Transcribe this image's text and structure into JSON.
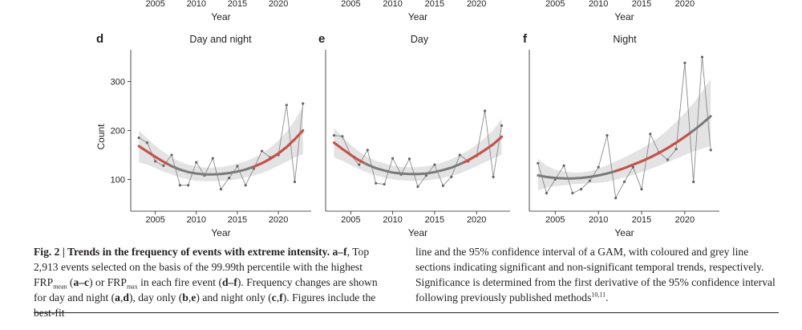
{
  "figure": {
    "label": "Fig. 2 | Trends in the frequency of events with extreme intensity.",
    "caption_col1_html": "<b>Fig. 2 | Trends in the frequency of events with extreme intensity. a–f</b>, Top 2,913 events selected on the basis of the 99.99th percentile with the highest FRP<sub>mean</sub> (<b>a–c</b>) or FRP<sub>max</sub> in each fire event (<b>d–f</b>). Frequency changes are shown for day and night (<b>a</b>,<b>d</b>), day only (<b>b</b>,<b>e</b>) and night only (<b>c</b>,<b>f</b>). Figures include the best-fit",
    "caption_col2_html": "line and the 95% confidence interval of a GAM, with coloured and grey line sections indicating significant and non-significant temporal trends, respectively. Significance is determined from the first derivative of the 95% confidence interval following previously published methods<sup>10,11</sup>."
  },
  "top_row_partial": {
    "panels": [
      {
        "ticks": [
          "2005",
          "2010",
          "2015",
          "2020"
        ],
        "xlabel": "Year"
      },
      {
        "ticks": [
          "2005",
          "2010",
          "2015",
          "2020"
        ],
        "xlabel": "Year"
      },
      {
        "ticks": [
          "2005",
          "2010",
          "2015",
          "2020"
        ],
        "xlabel": "Year"
      }
    ]
  },
  "colors": {
    "significant": "#c8504a",
    "nonsignificant": "#7a7a7a",
    "ci_band": "#e3e3e3",
    "observed": "#8a8a8a"
  },
  "chart_data": [
    {
      "type": "line",
      "panel": "d",
      "title": "Day and night",
      "xlabel": "Year",
      "ylabel": "Count",
      "xlim": [
        2002,
        2024
      ],
      "ylim": [
        35,
        365
      ],
      "yticks": [
        100,
        200,
        300
      ],
      "xticks": [
        2005,
        2010,
        2015,
        2020
      ],
      "x": [
        2003,
        2004,
        2005,
        2006,
        2007,
        2008,
        2009,
        2010,
        2011,
        2012,
        2013,
        2014,
        2015,
        2016,
        2017,
        2018,
        2019,
        2020,
        2021,
        2022,
        2023
      ],
      "observed": [
        185,
        175,
        137,
        128,
        150,
        88,
        88,
        135,
        108,
        143,
        80,
        103,
        127,
        88,
        122,
        158,
        145,
        150,
        252,
        95,
        255
      ],
      "fit": [
        168,
        157,
        146,
        136,
        127,
        120,
        115,
        112,
        110,
        110,
        111,
        113,
        116,
        120,
        126,
        133,
        142,
        153,
        166,
        182,
        200
      ],
      "ci_lower": [
        135,
        130,
        123,
        116,
        110,
        104,
        100,
        97,
        96,
        96,
        97,
        98,
        100,
        104,
        108,
        113,
        120,
        128,
        136,
        145,
        152
      ],
      "ci_upper": [
        200,
        184,
        169,
        156,
        145,
        136,
        130,
        127,
        124,
        124,
        125,
        128,
        132,
        137,
        144,
        153,
        165,
        179,
        197,
        220,
        250
      ],
      "significant_segments": [
        [
          2003,
          2006.5
        ],
        [
          2017,
          2023
        ]
      ]
    },
    {
      "type": "line",
      "panel": "e",
      "title": "Day",
      "xlabel": "Year",
      "ylabel": "",
      "xlim": [
        2002,
        2024
      ],
      "ylim": [
        35,
        365
      ],
      "xticks": [
        2005,
        2010,
        2015,
        2020
      ],
      "x": [
        2003,
        2004,
        2005,
        2006,
        2007,
        2008,
        2009,
        2010,
        2011,
        2012,
        2013,
        2014,
        2015,
        2016,
        2017,
        2018,
        2019,
        2020,
        2021,
        2022,
        2023
      ],
      "observed": [
        190,
        188,
        150,
        130,
        160,
        92,
        90,
        143,
        110,
        142,
        85,
        108,
        130,
        87,
        105,
        150,
        137,
        148,
        240,
        105,
        210
      ],
      "fit": [
        175,
        162,
        150,
        139,
        130,
        123,
        118,
        114,
        112,
        111,
        111,
        112,
        115,
        119,
        124,
        131,
        139,
        149,
        160,
        172,
        187
      ],
      "ci_lower": [
        145,
        138,
        129,
        121,
        114,
        108,
        103,
        100,
        98,
        97,
        97,
        98,
        100,
        103,
        107,
        112,
        119,
        127,
        135,
        143,
        150
      ],
      "ci_upper": [
        205,
        187,
        171,
        157,
        146,
        138,
        133,
        128,
        126,
        125,
        125,
        127,
        130,
        135,
        141,
        150,
        159,
        171,
        185,
        201,
        224
      ],
      "significant_segments": [
        [
          2003,
          2006.5
        ],
        [
          2018.5,
          2023
        ]
      ]
    },
    {
      "type": "line",
      "panel": "f",
      "title": "Night",
      "xlabel": "Year",
      "ylabel": "",
      "xlim": [
        2002,
        2024
      ],
      "ylim": [
        35,
        365
      ],
      "xticks": [
        2005,
        2010,
        2015,
        2020
      ],
      "x": [
        2003,
        2004,
        2005,
        2006,
        2007,
        2008,
        2009,
        2010,
        2011,
        2012,
        2013,
        2014,
        2015,
        2016,
        2017,
        2018,
        2019,
        2020,
        2021,
        2022,
        2023
      ],
      "observed": [
        133,
        72,
        100,
        128,
        72,
        80,
        97,
        125,
        190,
        62,
        95,
        125,
        80,
        193,
        155,
        140,
        162,
        338,
        95,
        350,
        160
      ],
      "fit": [
        108,
        105,
        103,
        102,
        102,
        103,
        105,
        108,
        112,
        117,
        123,
        130,
        137,
        145,
        154,
        164,
        175,
        187,
        200,
        214,
        229
      ],
      "ci_lower": [
        78,
        83,
        86,
        88,
        90,
        91,
        92,
        93,
        95,
        99,
        104,
        109,
        115,
        121,
        128,
        135,
        142,
        150,
        157,
        163,
        168
      ],
      "ci_upper": [
        142,
        128,
        120,
        116,
        114,
        114,
        117,
        122,
        129,
        137,
        145,
        154,
        163,
        174,
        186,
        201,
        218,
        236,
        256,
        280,
        305
      ],
      "significant_segments": [
        [
          2012,
          2020.5
        ]
      ]
    }
  ]
}
